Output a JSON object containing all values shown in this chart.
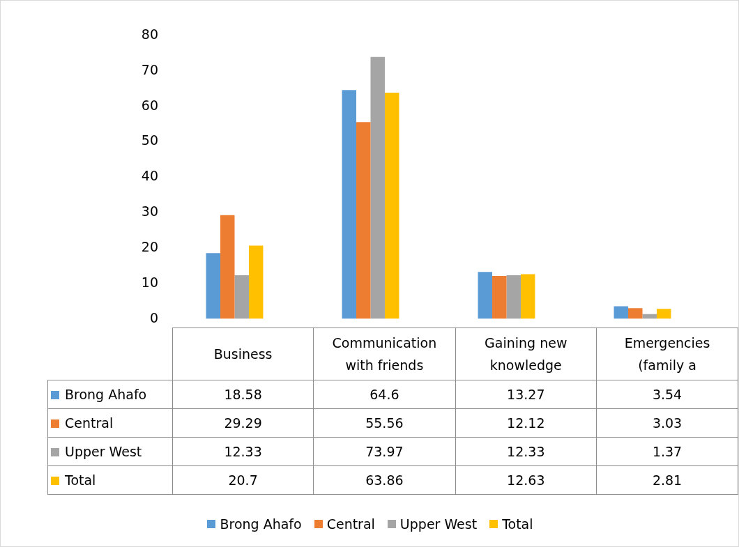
{
  "chart_data": {
    "type": "bar",
    "categories": [
      "Business",
      "Communication with friends",
      "Gaining new knowledge",
      "Emergencies (family a"
    ],
    "series": [
      {
        "name": "Brong Ahafo",
        "color": "#5b9bd5",
        "values": [
          18.58,
          64.6,
          13.27,
          3.54
        ]
      },
      {
        "name": "Central",
        "color": "#ed7d31",
        "values": [
          29.29,
          55.56,
          12.12,
          3.03
        ]
      },
      {
        "name": "Upper West",
        "color": "#a5a5a5",
        "values": [
          12.33,
          73.97,
          12.33,
          1.37
        ]
      },
      {
        "name": "Total",
        "color": "#ffc000",
        "values": [
          20.7,
          63.86,
          12.63,
          2.81
        ]
      }
    ],
    "ylim": [
      0,
      80
    ],
    "yticks": [
      0,
      10,
      20,
      30,
      40,
      50,
      60,
      70,
      80
    ],
    "grid": false,
    "legend": "bottom",
    "data_labels": true
  }
}
